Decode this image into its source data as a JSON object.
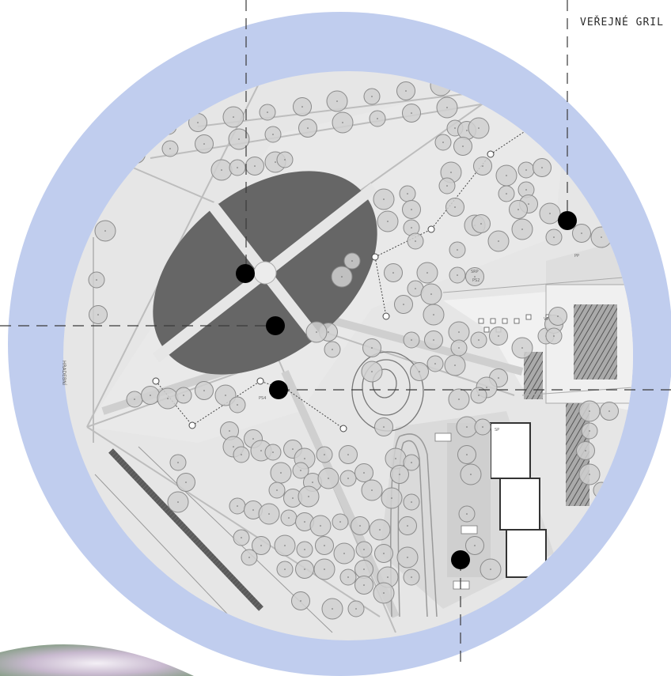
{
  "labels": {
    "grill": "VEŘEJNÉ GRIL",
    "street": "HRADEBNÍ",
    "ps2": "PS2",
    "ps4": "PS4",
    "srp": "SRP",
    "pp": "PP",
    "sp": "SP",
    "vp": "VP"
  },
  "colors": {
    "ring": "#c0cdee",
    "map_bg": "#e6e6e6",
    "paths": "#d3d3d3",
    "lawn_ellipse": "#666666",
    "tree_fill": "#d0d0d0",
    "tree_stroke": "#8a8a8a",
    "marker": "#000000",
    "guide_line": "#3a3a3a"
  },
  "icons": {
    "marker": "filled-black-circle",
    "tree": "grey-circle-with-dot",
    "path-node": "small-open-circle"
  },
  "markers_count": 6
}
